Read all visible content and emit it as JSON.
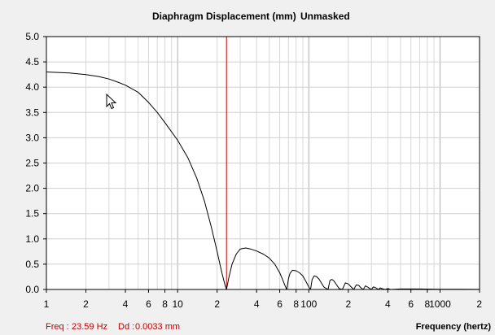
{
  "chart_data": {
    "type": "line",
    "title": "Diaphragm Displacement (mm)",
    "mode_label": "Unmasked",
    "xlabel": "Frequency (hertz)",
    "ylabel": "",
    "x_scale": "log",
    "xlim": [
      1,
      2000
    ],
    "ylim": [
      0,
      5.0
    ],
    "grid": true,
    "y_ticks": [
      "0.0",
      "0.5",
      "1.0",
      "1.5",
      "2.0",
      "2.5",
      "3.0",
      "3.5",
      "4.0",
      "4.5",
      "5.0"
    ],
    "y_tick_values": [
      0,
      0.5,
      1.0,
      1.5,
      2.0,
      2.5,
      3.0,
      3.5,
      4.0,
      4.5,
      5.0
    ],
    "x_ticks": [
      {
        "v": 1,
        "label": "1"
      },
      {
        "v": 2,
        "label": "2"
      },
      {
        "v": 4,
        "label": "4"
      },
      {
        "v": 6,
        "label": "6"
      },
      {
        "v": 8,
        "label": "8"
      },
      {
        "v": 10,
        "label": "10"
      },
      {
        "v": 20,
        "label": "2"
      },
      {
        "v": 40,
        "label": "4"
      },
      {
        "v": 60,
        "label": "6"
      },
      {
        "v": 80,
        "label": "8"
      },
      {
        "v": 100,
        "label": "100"
      },
      {
        "v": 200,
        "label": "2"
      },
      {
        "v": 400,
        "label": "4"
      },
      {
        "v": 600,
        "label": "6"
      },
      {
        "v": 800,
        "label": "8"
      },
      {
        "v": 1000,
        "label": "1000"
      },
      {
        "v": 2000,
        "label": "2"
      }
    ],
    "cursor": {
      "x": 23.59,
      "color": "#cc0000"
    },
    "series": [
      {
        "color": "#000000",
        "x": [
          1,
          1.5,
          2,
          2.5,
          3,
          3.5,
          4,
          5,
          6,
          7,
          8,
          10,
          12,
          14,
          16,
          18,
          20,
          21,
          22,
          23,
          23.59,
          24.5,
          26,
          28,
          30,
          33,
          36,
          40,
          45,
          50,
          55,
          60,
          63,
          66,
          68,
          70,
          72,
          75,
          80,
          85,
          90,
          95,
          100,
          103,
          106,
          110,
          115,
          120,
          130,
          140,
          145,
          150,
          155,
          160,
          170,
          180,
          190,
          200,
          210,
          220,
          230,
          240,
          250,
          260,
          270,
          280,
          300,
          310,
          320,
          340,
          350,
          360,
          380,
          400,
          420,
          500,
          700,
          1000,
          1500,
          2000
        ],
        "y": [
          4.3,
          4.28,
          4.25,
          4.21,
          4.16,
          4.1,
          4.04,
          3.9,
          3.7,
          3.5,
          3.3,
          2.95,
          2.6,
          2.2,
          1.75,
          1.25,
          0.75,
          0.5,
          0.28,
          0.08,
          0.0,
          0.22,
          0.5,
          0.7,
          0.8,
          0.82,
          0.8,
          0.76,
          0.7,
          0.62,
          0.5,
          0.33,
          0.2,
          0.07,
          0.0,
          0.22,
          0.32,
          0.38,
          0.37,
          0.33,
          0.27,
          0.16,
          0.05,
          0.0,
          0.2,
          0.27,
          0.25,
          0.2,
          0.05,
          0.0,
          0.18,
          0.2,
          0.17,
          0.12,
          0.02,
          0.0,
          0.13,
          0.11,
          0.05,
          0.0,
          0.09,
          0.08,
          0.03,
          0.0,
          0.07,
          0.05,
          0.0,
          0.05,
          0.04,
          0.0,
          0.03,
          0.02,
          0.0,
          0.02,
          0.0,
          0.01,
          0.01,
          0.005,
          0.003,
          0.002
        ]
      }
    ]
  },
  "status": {
    "freq_label": "Freq :",
    "freq_value": "23.59 Hz",
    "dd_label": "Dd :",
    "dd_value": "0.0033 mm"
  }
}
